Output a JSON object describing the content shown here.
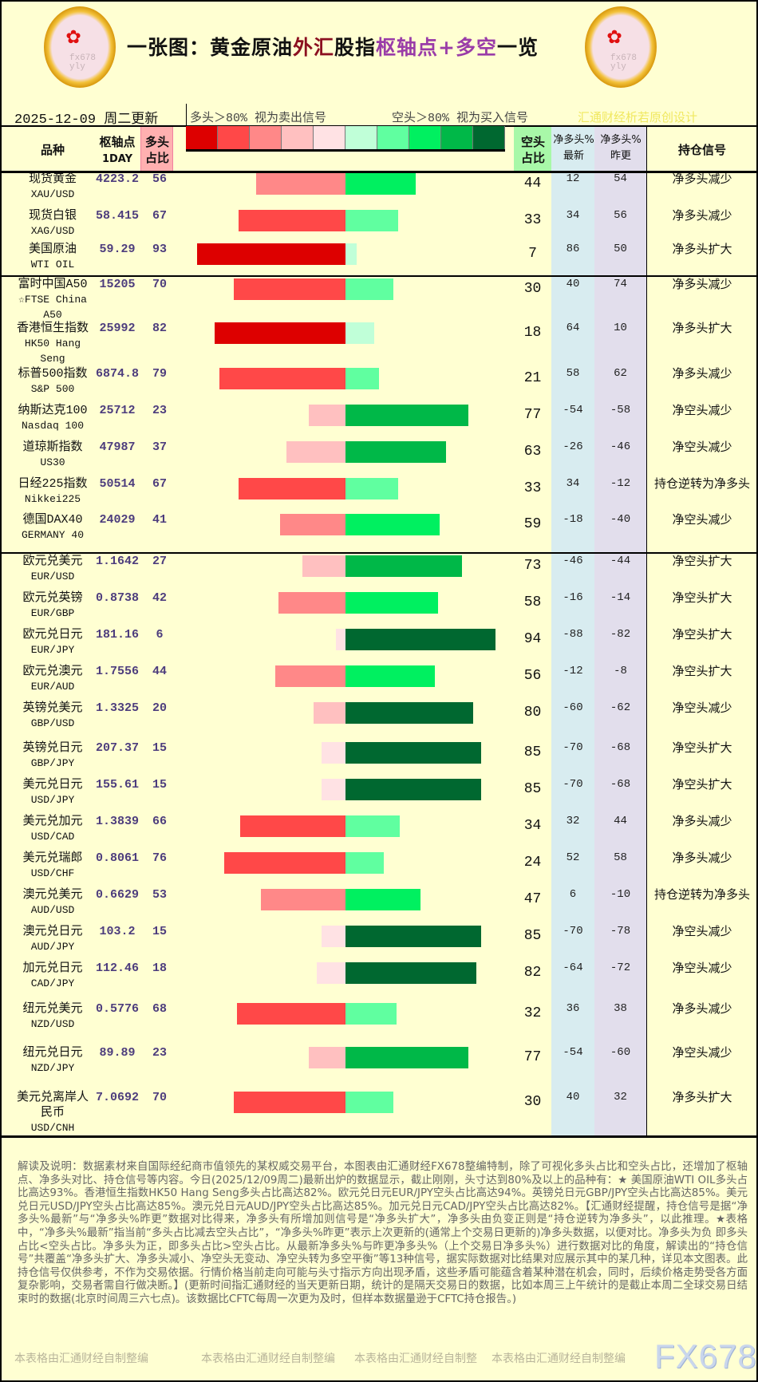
{
  "header": {
    "title_parts": [
      "一张图：黄金原油",
      "外汇",
      "股指",
      "枢轴点+多空",
      "一览"
    ],
    "date_label": "2025-12-09  周二更新",
    "legend_long": "多头＞80% 视为卖出信号",
    "legend_short": "空头＞80% 视为买入信号",
    "designer": "汇通财经析若原创设计",
    "logo_watermark": "fx678 yly",
    "legend_colors": [
      "#dd0000",
      "#ff4848",
      "#ff8888",
      "#ffc0c0",
      "#ffe2e4",
      "#c0ffd8",
      "#60ffa0",
      "#00f060",
      "#00b848",
      "#006830"
    ]
  },
  "columns": {
    "name": "品种",
    "pivot": "枢轴点",
    "pivot_sub": "1DAY",
    "long_pct": "多头占比",
    "short_pct": "空头占比",
    "net_latest": "净多头%最新",
    "net_prev": "净多头%昨更",
    "signal": "持仓信号"
  },
  "rows": [
    {
      "name": "现货黄金",
      "code": "XAU/USD",
      "pivot": "4223.2",
      "long": 56,
      "short": 44,
      "net_latest": "12",
      "net_prev": "54",
      "signal": "净多头减少"
    },
    {
      "name": "现货白银",
      "code": "XAG/USD",
      "pivot": "58.415",
      "long": 67,
      "short": 33,
      "net_latest": "34",
      "net_prev": "56",
      "signal": "净多头减少"
    },
    {
      "name": "美国原油",
      "code": "WTI OIL",
      "pivot": "59.29",
      "long": 93,
      "short": 7,
      "net_latest": "86",
      "net_prev": "50",
      "signal": "净多头扩大"
    },
    {
      "name": "富时中国A50",
      "code": "☆FTSE China A50",
      "pivot": "15205",
      "long": 70,
      "short": 30,
      "net_latest": "40",
      "net_prev": "74",
      "signal": "净多头减少"
    },
    {
      "name": "香港恒生指数",
      "code": "HK50 Hang Seng",
      "pivot": "25992",
      "long": 82,
      "short": 18,
      "net_latest": "64",
      "net_prev": "10",
      "signal": "净多头扩大"
    },
    {
      "name": "标普500指数",
      "code": "S&P 500",
      "pivot": "6874.8",
      "long": 79,
      "short": 21,
      "net_latest": "58",
      "net_prev": "62",
      "signal": "净多头减少"
    },
    {
      "name": "纳斯达克100",
      "code": "Nasdaq 100",
      "pivot": "25712",
      "long": 23,
      "short": 77,
      "net_latest": "-54",
      "net_prev": "-58",
      "signal": "净空头减少"
    },
    {
      "name": "道琼斯指数",
      "code": "US30",
      "pivot": "47987",
      "long": 37,
      "short": 63,
      "net_latest": "-26",
      "net_prev": "-46",
      "signal": "净空头减少"
    },
    {
      "name": "日经225指数",
      "code": "Nikkei225",
      "pivot": "50514",
      "long": 67,
      "short": 33,
      "net_latest": "34",
      "net_prev": "-12",
      "signal": "持仓逆转为净多头"
    },
    {
      "name": "德国DAX40",
      "code": "GERMANY 40",
      "pivot": "24029",
      "long": 41,
      "short": 59,
      "net_latest": "-18",
      "net_prev": "-40",
      "signal": "净空头减少"
    },
    {
      "name": "欧元兑美元",
      "code": "EUR/USD",
      "pivot": "1.1642",
      "long": 27,
      "short": 73,
      "net_latest": "-46",
      "net_prev": "-44",
      "signal": "净空头扩大"
    },
    {
      "name": "欧元兑英镑",
      "code": "EUR/GBP",
      "pivot": "0.8738",
      "long": 42,
      "short": 58,
      "net_latest": "-16",
      "net_prev": "-14",
      "signal": "净空头扩大"
    },
    {
      "name": "欧元兑日元",
      "code": "EUR/JPY",
      "pivot": "181.16",
      "long": 6,
      "short": 94,
      "net_latest": "-88",
      "net_prev": "-82",
      "signal": "净空头扩大"
    },
    {
      "name": "欧元兑澳元",
      "code": "EUR/AUD",
      "pivot": "1.7556",
      "long": 44,
      "short": 56,
      "net_latest": "-12",
      "net_prev": "-8",
      "signal": "净空头扩大"
    },
    {
      "name": "英镑兑美元",
      "code": "GBP/USD",
      "pivot": "1.3325",
      "long": 20,
      "short": 80,
      "net_latest": "-60",
      "net_prev": "-62",
      "signal": "净空头减少"
    },
    {
      "name": "英镑兑日元",
      "code": "GBP/JPY",
      "pivot": "207.37",
      "long": 15,
      "short": 85,
      "net_latest": "-70",
      "net_prev": "-68",
      "signal": "净空头扩大"
    },
    {
      "name": "美元兑日元",
      "code": "USD/JPY",
      "pivot": "155.61",
      "long": 15,
      "short": 85,
      "net_latest": "-70",
      "net_prev": "-68",
      "signal": "净空头扩大"
    },
    {
      "name": "美元兑加元",
      "code": "USD/CAD",
      "pivot": "1.3839",
      "long": 66,
      "short": 34,
      "net_latest": "32",
      "net_prev": "44",
      "signal": "净多头减少"
    },
    {
      "name": "美元兑瑞郎",
      "code": "USD/CHF",
      "pivot": "0.8061",
      "long": 76,
      "short": 24,
      "net_latest": "52",
      "net_prev": "58",
      "signal": "净多头减少"
    },
    {
      "name": "澳元兑美元",
      "code": "AUD/USD",
      "pivot": "0.6629",
      "long": 53,
      "short": 47,
      "net_latest": "6",
      "net_prev": "-10",
      "signal": "持仓逆转为净多头"
    },
    {
      "name": "澳元兑日元",
      "code": "AUD/JPY",
      "pivot": "103.2",
      "long": 15,
      "short": 85,
      "net_latest": "-70",
      "net_prev": "-78",
      "signal": "净空头减少"
    },
    {
      "name": "加元兑日元",
      "code": "CAD/JPY",
      "pivot": "112.46",
      "long": 18,
      "short": 82,
      "net_latest": "-64",
      "net_prev": "-72",
      "signal": "净空头减少"
    },
    {
      "name": "纽元兑美元",
      "code": "NZD/USD",
      "pivot": "0.5776",
      "long": 68,
      "short": 32,
      "net_latest": "36",
      "net_prev": "38",
      "signal": "净多头减少"
    },
    {
      "name": "纽元兑日元",
      "code": "NZD/JPY",
      "pivot": "89.89",
      "long": 23,
      "short": 77,
      "net_latest": "-54",
      "net_prev": "-60",
      "signal": "净空头减少"
    },
    {
      "name": "美元兑离岸人民币",
      "code": "USD/CNH",
      "pivot": "7.0692",
      "long": 70,
      "short": 30,
      "net_latest": "40",
      "net_prev": "32",
      "signal": "净多头扩大"
    }
  ],
  "notes": "解读及说明：数据素材来自国际经纪商市值领先的某权威交易平台，本图表由汇通财经FX678整编特制，除了可视化多头占比和空头占比，还增加了枢轴点、净多头对比、持仓信号等内容。今日(2025/12/09周二)最新出炉的数据显示，截止刚刚，头寸达到80%及以上的品种有：★ 美国原油WTI OIL多头占比高达93%。香港恒生指数HK50 Hang Seng多头占比高达82%。欧元兑日元EUR/JPY空头占比高达94%。英镑兑日元GBP/JPY空头占比高达85%。美元兑日元USD/JPY空头占比高达85%。澳元兑日元AUD/JPY空头占比高达85%。加元兑日元CAD/JPY空头占比高达82%。【汇通财经提醒，持仓信号是据“净多头%最新”与“净多头%昨更”数据对比得来，净多头有所增加则信号是“净多头扩大”，净多头由负变正则是“持仓逆转为净多头”，以此推理。★表格中，“净多头%最新”指当前“多头占比减去空头占比”，“净多头%昨更”表示上次更新的(通常上个交易日更新的)净多头数据，以便对比。净多头为负 即多头占比<空头占比。净多头为正，即多头占比>空头占比。从最新净多头%与昨更净多头%（上个交易日净多头%）进行数据对比的角度，解读出的“持仓信号”共覆盖“净多头扩大、净多头减小、净空头无变动、净空头转为多空平衡”等13种信号，据实际数据对比结果对应展示其中的某几种，详见本文图表。此持仓信号仅供参考，不作为交易依据。行情价格当前走向可能与头寸指示方向出现矛盾，这些矛盾可能蕴含着某种潜在机会，同时，后续价格走势受各方面复杂影响，交易者需自行做决断。】(更新时间指汇通财经的当天更新日期，统计的是隔天交易日的数据，比如本周三上午统计的是截止本周二全球交易日结束时的数据(北京时间周三六七点)。该数据比CFTC每周一次更为及时，但样本数据量逊于CFTC持仓报告。)",
  "footer": {
    "credits": [
      "本表格由汇通财经自制整编",
      "本表格由汇通财经自制整编",
      "本表格由汇通财经自制整",
      "本表格由汇通财经自制整编"
    ],
    "brand": "FX678"
  },
  "colors": {
    "background": "#ffffd2",
    "pivot_text": "#4d3d7d",
    "long_header_bg": "#ffb0b0",
    "short_header_bg": "#a8f8a8",
    "net_latest_bg": "#d8ecf0",
    "net_prev_bg": "#e2deec",
    "designer_text": "#f0e860"
  }
}
